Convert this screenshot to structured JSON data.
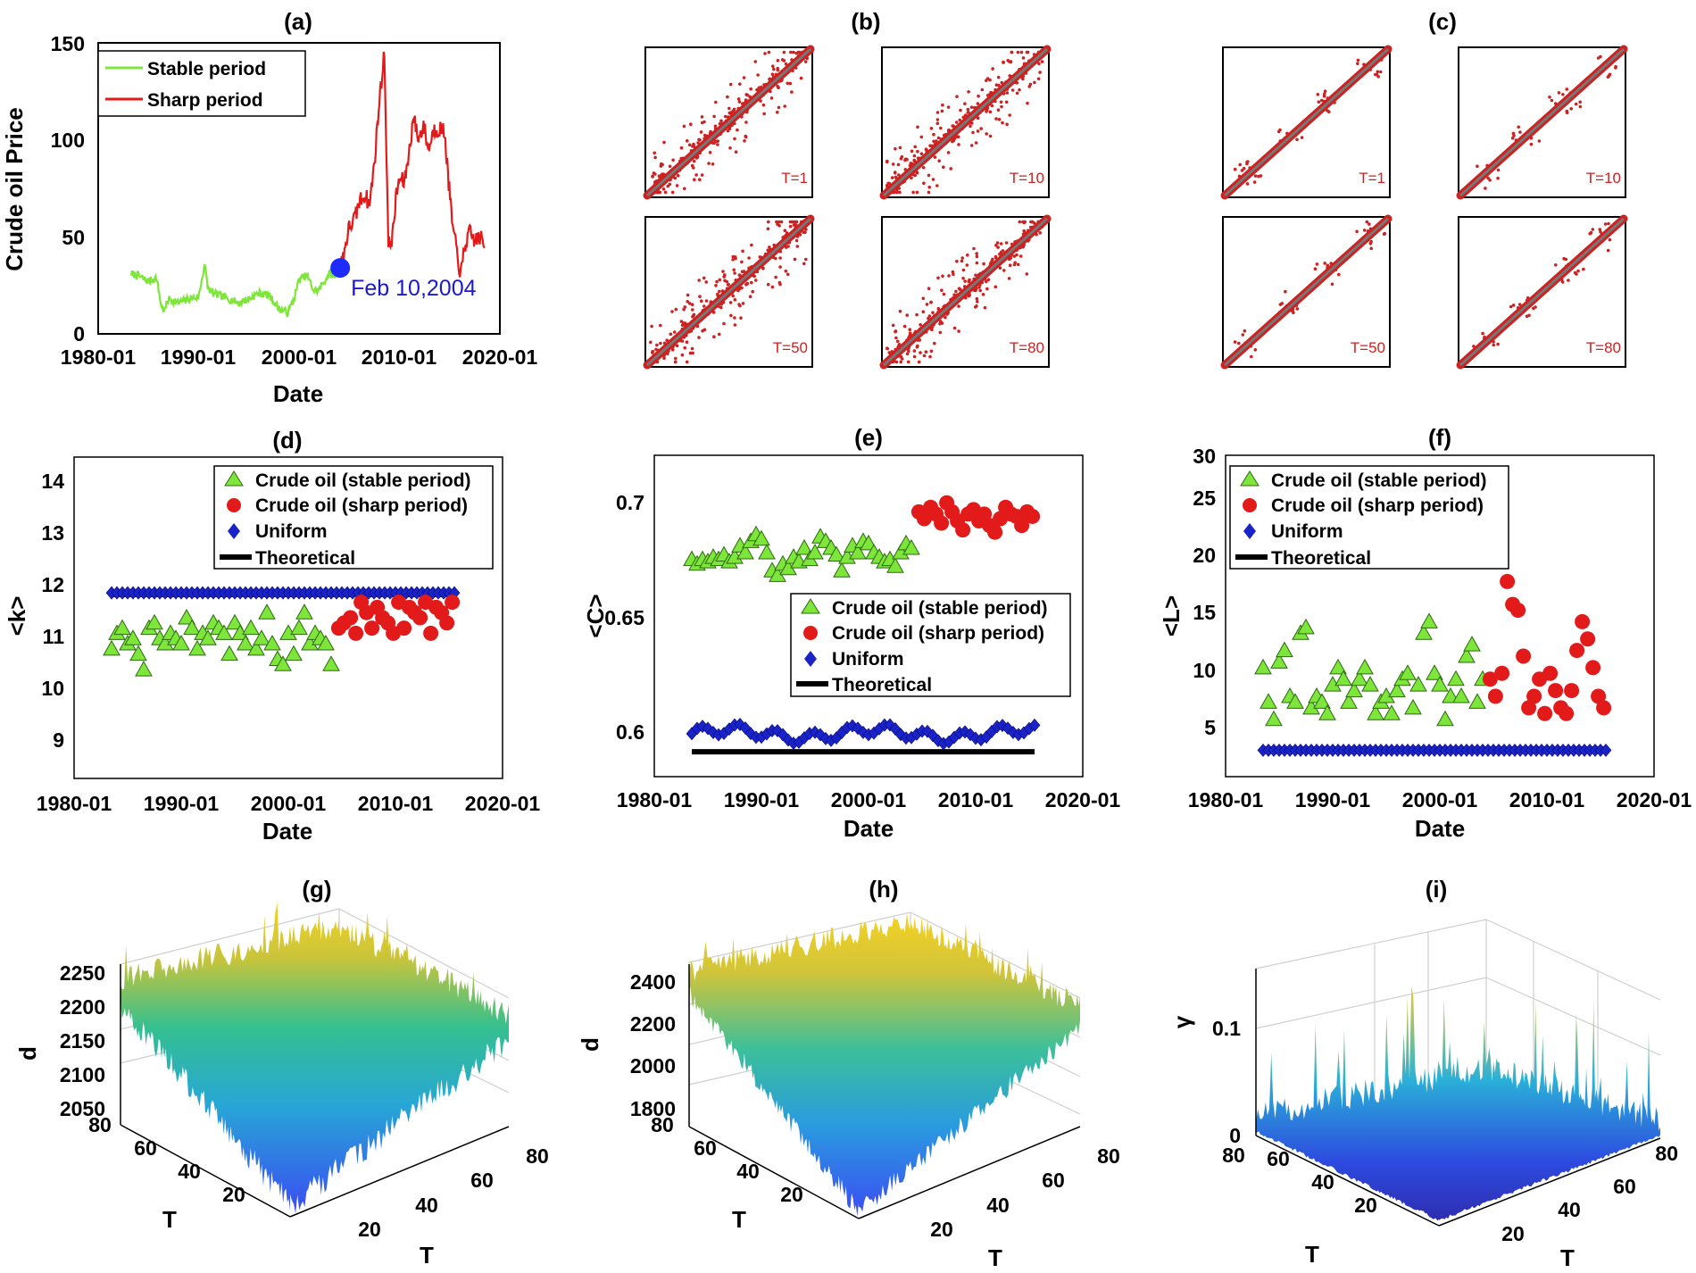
{
  "colors": {
    "stable": "#7ee63a",
    "sharp": "#e21a1a",
    "uniform": "#1a23c8",
    "marker": "#1e2bff",
    "theoretical": "#000000",
    "matrix_dot": "#cc2222",
    "matrix_diag": "#777777"
  },
  "chart_data": [
    {
      "id": "a",
      "type": "line",
      "title": "(a)",
      "xlabel": "Date",
      "ylabel": "Crude oil Price",
      "xlim": [
        1980,
        2020
      ],
      "ylim": [
        0,
        150
      ],
      "xticks": [
        "1980-01",
        "1990-01",
        "2000-01",
        "2010-01",
        "2020-01"
      ],
      "yticks": [
        "0",
        "50",
        "100",
        "150"
      ],
      "legend": [
        "Stable period",
        "Sharp period"
      ],
      "legend_position": "top-left",
      "series": [
        {
          "name": "Stable period",
          "x": [
            1983.3,
            1984,
            1985,
            1985.8,
            1986.3,
            1986.6,
            1987,
            1988,
            1989,
            1990,
            1990.6,
            1990.9,
            1991.4,
            1992,
            1993,
            1994,
            1995,
            1996,
            1997,
            1998,
            1998.9,
            1999.5,
            2000,
            2000.8,
            2001.5,
            2002,
            2002.5,
            2003,
            2003.6,
            2004.1
          ],
          "y": [
            31,
            30,
            27,
            29,
            14,
            12,
            18,
            16,
            18,
            19,
            36,
            24,
            21,
            20,
            18,
            16,
            18,
            21,
            20,
            13,
            11,
            18,
            28,
            30,
            22,
            23,
            27,
            31,
            30,
            34
          ]
        },
        {
          "name": "Sharp period",
          "x": [
            2004.1,
            2004.6,
            2005,
            2005.6,
            2006,
            2006.6,
            2007,
            2007.5,
            2008,
            2008.5,
            2008.9,
            2009.3,
            2009.7,
            2010,
            2010.5,
            2011,
            2011.4,
            2011.9,
            2012.4,
            2012.9,
            2013.4,
            2014,
            2014.5,
            2014.9,
            2015.3,
            2015.8,
            2016.1,
            2016.5,
            2017,
            2017.5,
            2018,
            2018.5
          ],
          "y": [
            34,
            45,
            55,
            60,
            68,
            72,
            66,
            88,
            120,
            145,
            45,
            50,
            72,
            80,
            78,
            95,
            112,
            100,
            108,
            95,
            105,
            106,
            104,
            78,
            55,
            40,
            30,
            45,
            52,
            48,
            50,
            45
          ]
        }
      ],
      "annotation": {
        "text": "Feb 10,2004",
        "x": 2004.1,
        "y": 34
      }
    },
    {
      "id": "b",
      "type": "heatmap",
      "title": "(b)",
      "panels": [
        {
          "label": "T=1"
        },
        {
          "label": "T=10"
        },
        {
          "label": "T=50"
        },
        {
          "label": "T=80"
        }
      ]
    },
    {
      "id": "c",
      "type": "heatmap",
      "title": "(c)",
      "panels": [
        {
          "label": "T=1"
        },
        {
          "label": "T=10"
        },
        {
          "label": "T=50"
        },
        {
          "label": "T=80"
        }
      ]
    },
    {
      "id": "d",
      "type": "scatter",
      "title": "(d)",
      "xlabel": "Date",
      "ylabel": "<k>",
      "xlim": [
        1980,
        2020
      ],
      "ylim": [
        8.4,
        14.6
      ],
      "xticks": [
        "1980-01",
        "1990-01",
        "2000-01",
        "2010-01",
        "2020-01"
      ],
      "yticks": [
        "9",
        "10",
        "11",
        "12",
        "13",
        "14"
      ],
      "legend": [
        "Crude oil (stable period)",
        "Crude oil (sharp period)",
        "Uniform",
        "Theoretical"
      ],
      "legend_position": "top-right",
      "stable": {
        "x": [
          1983.5,
          1984,
          1984.5,
          1985,
          1985.5,
          1986,
          1986.5,
          1987,
          1987.5,
          1988,
          1988.5,
          1989,
          1989.5,
          1990,
          1990.5,
          1991,
          1991.5,
          1992,
          1992.5,
          1993,
          1993.5,
          1994,
          1994.5,
          1995,
          1995.5,
          1996,
          1996.5,
          1997,
          1997.5,
          1998,
          1998.5,
          1999,
          1999.5,
          2000,
          2000.5,
          2001,
          2001.5,
          2002,
          2002.5,
          2003,
          2003.5,
          2004
        ],
        "y": [
          10.9,
          11.2,
          11.3,
          11.0,
          11.1,
          10.8,
          10.5,
          11.3,
          11.4,
          11.1,
          11.0,
          11.2,
          11.1,
          11.0,
          11.5,
          11.3,
          10.9,
          11.2,
          11.1,
          11.4,
          11.3,
          11.2,
          10.8,
          11.4,
          11.2,
          11.0,
          11.3,
          10.9,
          11.1,
          11.6,
          11.0,
          10.7,
          10.6,
          11.2,
          10.8,
          11.3,
          11.6,
          11.0,
          11.2,
          11.1,
          11.0,
          10.6
        ]
      },
      "sharp": {
        "x": [
          2004.7,
          2005.2,
          2005.8,
          2006.3,
          2006.8,
          2007.3,
          2007.8,
          2008.3,
          2008.8,
          2009.3,
          2009.8,
          2010.3,
          2010.8,
          2011.3,
          2011.8,
          2012.3,
          2012.8,
          2013.3,
          2013.8,
          2014.3,
          2014.8,
          2015.3
        ],
        "y": [
          11.3,
          11.4,
          11.5,
          11.2,
          11.8,
          11.6,
          11.3,
          11.7,
          11.5,
          11.4,
          11.2,
          11.8,
          11.3,
          11.7,
          11.6,
          11.5,
          11.8,
          11.2,
          11.7,
          11.6,
          11.4,
          11.8
        ]
      },
      "uniform": {
        "x0": 1983.5,
        "x1": 2015.5,
        "step": 0.5,
        "y": 11.98
      },
      "theoretical": {
        "x": [
          1983.5,
          2015.5
        ],
        "y": 11.95
      }
    },
    {
      "id": "e",
      "type": "scatter",
      "title": "(e)",
      "xlabel": "Date",
      "ylabel": "<C>",
      "xlim": [
        1980,
        2020
      ],
      "ylim": [
        0.581,
        0.723
      ],
      "xticks": [
        "1980-01",
        "1990-01",
        "2000-01",
        "2010-01",
        "2020-01"
      ],
      "yticks": [
        "0.6",
        "0.65",
        "0.7"
      ],
      "legend": [
        "Crude oil (stable period)",
        "Crude oil (sharp period)",
        "Uniform",
        "Theoretical"
      ],
      "legend_position": "center-right",
      "stable": {
        "x": [
          1983.5,
          1984,
          1984.5,
          1985,
          1985.5,
          1986,
          1986.5,
          1987,
          1987.5,
          1988,
          1988.5,
          1989,
          1989.5,
          1990,
          1990.5,
          1991,
          1991.5,
          1992,
          1992.5,
          1993,
          1993.5,
          1994,
          1994.5,
          1995,
          1995.5,
          1996,
          1996.5,
          1997,
          1997.5,
          1998,
          1998.5,
          1999,
          1999.5,
          2000,
          2000.5,
          2001,
          2001.5,
          2002,
          2002.5,
          2003,
          2003.5,
          2004
        ],
        "y": [
          0.677,
          0.675,
          0.677,
          0.676,
          0.678,
          0.677,
          0.679,
          0.676,
          0.678,
          0.683,
          0.68,
          0.685,
          0.688,
          0.686,
          0.68,
          0.672,
          0.67,
          0.675,
          0.673,
          0.678,
          0.676,
          0.682,
          0.677,
          0.68,
          0.687,
          0.685,
          0.682,
          0.679,
          0.672,
          0.678,
          0.683,
          0.68,
          0.685,
          0.684,
          0.68,
          0.678,
          0.676,
          0.677,
          0.674,
          0.68,
          0.684,
          0.682
        ]
      },
      "sharp": {
        "x": [
          2004.7,
          2005.2,
          2005.8,
          2006.3,
          2006.8,
          2007.3,
          2007.8,
          2008.3,
          2008.8,
          2009.3,
          2009.8,
          2010.3,
          2010.8,
          2011.3,
          2011.8,
          2012.3,
          2012.8,
          2013.3,
          2013.8,
          2014.3,
          2014.8,
          2015.3
        ],
        "y": [
          0.698,
          0.695,
          0.7,
          0.697,
          0.693,
          0.702,
          0.698,
          0.694,
          0.69,
          0.697,
          0.699,
          0.694,
          0.697,
          0.692,
          0.689,
          0.695,
          0.7,
          0.697,
          0.696,
          0.692,
          0.698,
          0.696
        ]
      },
      "uniform": {
        "x0": 1983.5,
        "x1": 2015.5,
        "step": 0.5,
        "ybase": 0.6,
        "amp": 0.004
      },
      "theoretical": {
        "x": [
          1983.5,
          2015.5
        ],
        "y": 0.592
      }
    },
    {
      "id": "f",
      "type": "scatter",
      "title": "(f)",
      "xlabel": "Date",
      "ylabel": "<L>",
      "xlim": [
        1980,
        2020
      ],
      "ylim": [
        2,
        30
      ],
      "xticks": [
        "1980-01",
        "1990-01",
        "2000-01",
        "2010-01",
        "2020-01"
      ],
      "yticks": [
        "5",
        "10",
        "15",
        "20",
        "25",
        "30"
      ],
      "legend": [
        "Crude oil (stable period)",
        "Crude oil (sharp period)",
        "Uniform",
        "Theoretical"
      ],
      "legend_position": "top-left",
      "stable": {
        "x": [
          1983.5,
          1984,
          1984.5,
          1985,
          1985.5,
          1986,
          1986.5,
          1987,
          1987.5,
          1988,
          1988.5,
          1989,
          1989.5,
          1990,
          1990.5,
          1991,
          1991.5,
          1992,
          1992.5,
          1993,
          1993.5,
          1994,
          1994.5,
          1995,
          1995.5,
          1996,
          1996.5,
          1997,
          1997.5,
          1998,
          1998.5,
          1999,
          1999.5,
          2000,
          2000.5,
          2001,
          2001.5,
          2002,
          2002.5,
          2003,
          2003.5,
          2004
        ],
        "y": [
          11.5,
          8.5,
          7.0,
          12.0,
          13.0,
          9.0,
          8.5,
          14.5,
          15.0,
          8.0,
          9.0,
          8.5,
          7.5,
          10.0,
          11.5,
          10.5,
          8.5,
          9.5,
          10.5,
          11.5,
          10.0,
          7.5,
          8.5,
          9.0,
          7.5,
          9.5,
          10.5,
          11.0,
          8.0,
          10.0,
          14.5,
          15.5,
          11.0,
          10.0,
          7.0,
          9.0,
          10.5,
          9.0,
          12.5,
          13.5,
          8.5,
          10.5
        ]
      },
      "sharp": {
        "x": [
          2004.7,
          2005.2,
          2005.8,
          2006.3,
          2006.8,
          2007.3,
          2007.8,
          2008.3,
          2008.8,
          2009.3,
          2009.8,
          2010.3,
          2010.8,
          2011.3,
          2011.8,
          2012.3,
          2012.8,
          2013.3,
          2013.8,
          2014.3,
          2014.8,
          2015.3
        ],
        "y": [
          10.5,
          9.0,
          11.0,
          19.0,
          17.0,
          16.5,
          12.5,
          8.0,
          9.0,
          10.5,
          7.5,
          11.0,
          9.5,
          8.0,
          7.5,
          9.5,
          13.0,
          15.5,
          14.0,
          11.5,
          9.0,
          8.0
        ]
      },
      "uniform": {
        "x0": 1983.5,
        "x1": 2015.5,
        "step": 0.5,
        "y": 4.3
      },
      "theoretical": {
        "x": [
          1983.5,
          2015.5
        ],
        "y": 4.4
      }
    },
    {
      "id": "g",
      "type": "area",
      "title": "(g)",
      "zlabel": "d",
      "xlabel": "T",
      "ylabel": "T",
      "zticks": [
        "2050",
        "2100",
        "2150",
        "2200",
        "2250"
      ],
      "xticks": [
        "20",
        "40",
        "60",
        "80"
      ],
      "yticks": [
        "20",
        "40",
        "60",
        "80"
      ]
    },
    {
      "id": "h",
      "type": "area",
      "title": "(h)",
      "zlabel": "d",
      "xlabel": "T",
      "ylabel": "T",
      "zticks": [
        "1800",
        "2000",
        "2200",
        "2400"
      ],
      "xticks": [
        "20",
        "40",
        "60",
        "80"
      ],
      "yticks": [
        "20",
        "40",
        "60",
        "80"
      ]
    },
    {
      "id": "i",
      "type": "area",
      "title": "(i)",
      "zlabel": "γ",
      "xlabel": "T",
      "ylabel": "T",
      "zticks": [
        "0",
        "0.1"
      ],
      "xticks": [
        "20",
        "40",
        "60",
        "80"
      ],
      "yticks": [
        "20",
        "40",
        "60",
        "80"
      ]
    }
  ]
}
